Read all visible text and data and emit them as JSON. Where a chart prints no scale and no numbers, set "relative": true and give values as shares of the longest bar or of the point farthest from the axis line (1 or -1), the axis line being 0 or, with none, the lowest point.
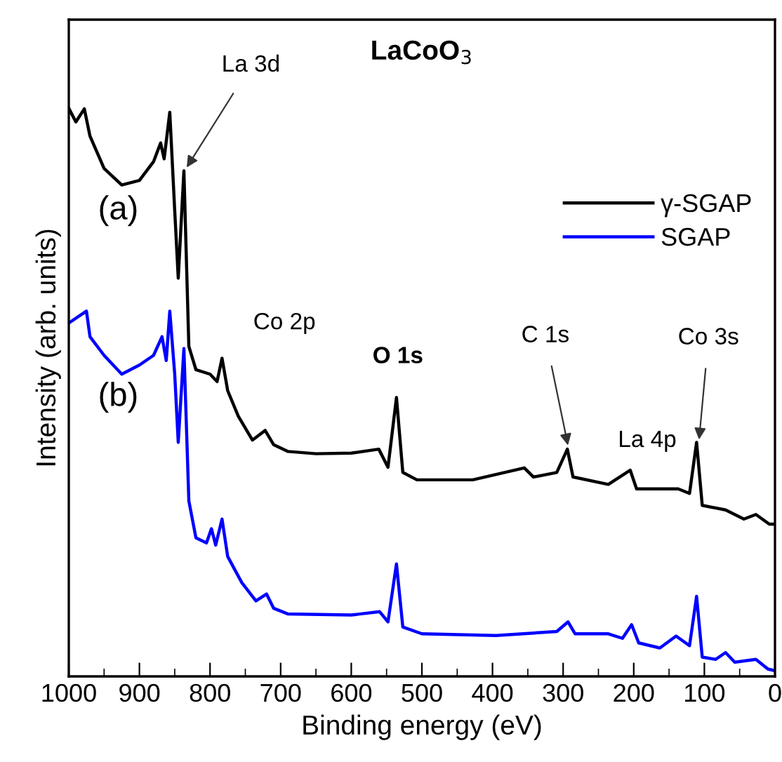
{
  "chart_data": {
    "type": "line",
    "title": "LaCoO$_{3}$",
    "xlabel": "Binding energy (eV)",
    "ylabel": "Intensity (arb. units)",
    "relative": true,
    "xlim": [
      1000,
      0
    ],
    "xticks": [
      1000,
      {
        "value": 950,
        "label": null
      },
      900,
      {
        "value": 850,
        "label": null
      },
      800,
      {
        "value": 750,
        "label": null
      },
      700,
      {
        "value": 650,
        "label": null
      },
      600,
      {
        "value": 550,
        "label": null
      },
      500,
      {
        "value": 450,
        "label": null
      },
      400,
      {
        "value": 350,
        "label": null
      },
      300,
      {
        "value": 250,
        "label": null
      },
      200,
      {
        "value": 150,
        "label": null
      },
      100,
      {
        "value": 50,
        "label": null
      },
      0
    ],
    "legend": "top right",
    "grid": false,
    "marker": "none",
    "line_style": "solid",
    "annotations": [
      {
        "text": "La 3d",
        "x": 836,
        "y": 0.89
      },
      {
        "text": "Co 2p",
        "x": 783,
        "y": 0.56
      },
      {
        "text": "O 1s",
        "x": 534,
        "y": 0.49
      },
      {
        "text": "C 1s",
        "x": 292,
        "y": 0.4
      },
      {
        "text": "La 4p",
        "x": 203,
        "y": 0.363
      },
      {
        "text": "Co 3s",
        "x": 108,
        "y": 0.41
      },
      "(a)",
      "(b)"
    ],
    "series": [
      {
        "name": "γ-SGAP",
        "color": "#000000",
        "x": [
          1000,
          990,
          978,
          970,
          950,
          925,
          900,
          880,
          870,
          865,
          857,
          850,
          845,
          837,
          830,
          820,
          800,
          790,
          783,
          775,
          760,
          740,
          722,
          710,
          690,
          650,
          600,
          561,
          548,
          536,
          527,
          507,
          428,
          355,
          342,
          309,
          294,
          286,
          236,
          205,
          196,
          137,
          121,
          111,
          103,
          70,
          44,
          27,
          8,
          0
        ],
        "values": [
          1.0,
          0.976,
          0.999,
          0.951,
          0.894,
          0.865,
          0.873,
          0.906,
          0.939,
          0.911,
          0.993,
          0.82,
          0.701,
          0.89,
          0.581,
          0.54,
          0.532,
          0.519,
          0.56,
          0.503,
          0.458,
          0.416,
          0.433,
          0.408,
          0.396,
          0.392,
          0.393,
          0.4,
          0.368,
          0.491,
          0.359,
          0.346,
          0.346,
          0.367,
          0.351,
          0.359,
          0.4,
          0.351,
          0.338,
          0.363,
          0.33,
          0.33,
          0.322,
          0.412,
          0.301,
          0.293,
          0.277,
          0.285,
          0.268,
          0.268
        ]
      },
      {
        "name": "SGAP",
        "color": "#0000ff",
        "x": [
          1000,
          975,
          970,
          950,
          925,
          900,
          880,
          868,
          862,
          857,
          850,
          845,
          837,
          830,
          820,
          805,
          798,
          792,
          783,
          775,
          755,
          735,
          720,
          710,
          690,
          600,
          560,
          548,
          536,
          527,
          500,
          395,
          309,
          293,
          283,
          236,
          216,
          203,
          193,
          163,
          140,
          121,
          111,
          103,
          84,
          70,
          57,
          27,
          10,
          0
        ],
        "values": [
          0.622,
          0.643,
          0.598,
          0.565,
          0.532,
          0.548,
          0.565,
          0.598,
          0.556,
          0.643,
          0.532,
          0.412,
          0.577,
          0.309,
          0.244,
          0.235,
          0.26,
          0.231,
          0.277,
          0.211,
          0.165,
          0.133,
          0.145,
          0.12,
          0.11,
          0.108,
          0.114,
          0.096,
          0.198,
          0.087,
          0.075,
          0.072,
          0.079,
          0.096,
          0.075,
          0.075,
          0.067,
          0.091,
          0.059,
          0.05,
          0.071,
          0.054,
          0.141,
          0.034,
          0.03,
          0.042,
          0.025,
          0.03,
          0.013,
          0.01
        ]
      }
    ]
  }
}
